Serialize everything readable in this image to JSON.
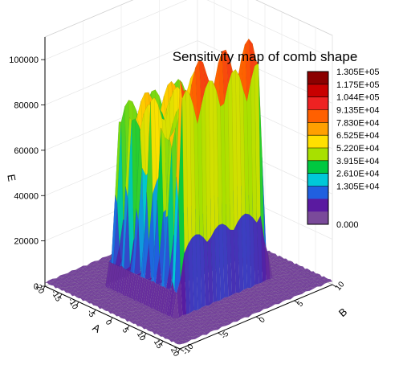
{
  "chart_data": {
    "type": "surface",
    "title": "Sensitivity map of comb shape",
    "zlabel": "E",
    "xlabel": "A",
    "ylabel": "B",
    "z_ticks": [
      "0",
      "20000",
      "40000",
      "60000",
      "80000",
      "100000"
    ],
    "zlim": [
      0,
      110000
    ],
    "x_ticks": [
      "-20",
      "-15",
      "-10",
      "-5",
      "0",
      "5",
      "10",
      "15",
      "20"
    ],
    "xlim": [
      -20,
      20
    ],
    "y_ticks": [
      "-10",
      "-5",
      "0",
      "5",
      "10"
    ],
    "ylim": [
      -10,
      10
    ],
    "comb": {
      "x_range": [
        -10,
        10
      ],
      "y_range": [
        -6,
        6
      ],
      "ridges_x": [
        -9,
        -6,
        -3,
        0,
        3,
        6,
        9
      ],
      "ridge_peak_values": [
        88000,
        92000,
        85000,
        90000,
        86000,
        93000,
        118000
      ],
      "base_level": 2000
    },
    "colorbar": {
      "levels": [
        "1.305E+05",
        "1.175E+05",
        "1.044E+05",
        "9.135E+04",
        "7.830E+04",
        "6.525E+04",
        "5.220E+04",
        "3.915E+04",
        "2.610E+04",
        "1.305E+04",
        "0.000"
      ],
      "colors": [
        "#8b0000",
        "#c80000",
        "#ee2222",
        "#ff6000",
        "#ffa000",
        "#ffe000",
        "#a8e000",
        "#00c840",
        "#00c8d8",
        "#2060e0",
        "#5a1aa0",
        "#7a4a9a"
      ]
    }
  }
}
